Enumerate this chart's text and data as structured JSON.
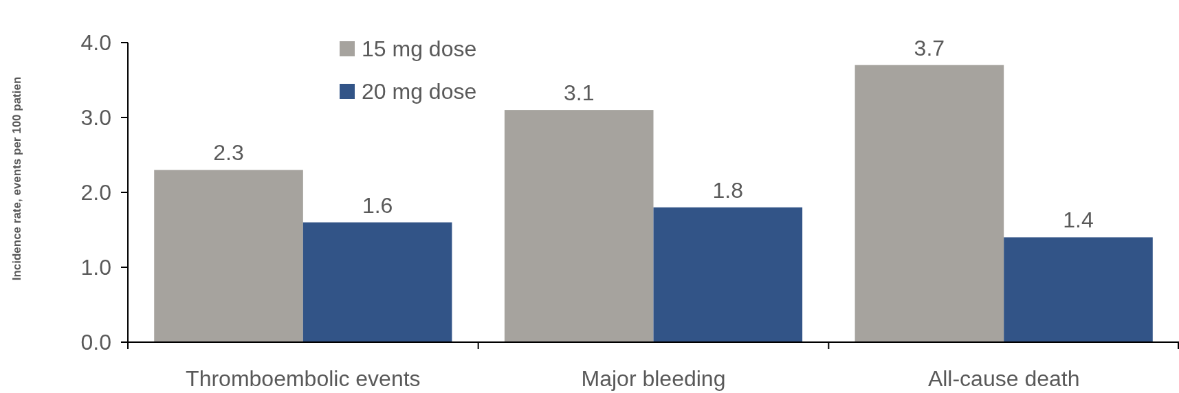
{
  "chart_data": {
    "type": "bar",
    "ylabel": "Incidence rate, events per 100 patien",
    "categories": [
      "Thromboembolic events",
      "Major bleeding",
      "All-cause death"
    ],
    "series": [
      {
        "name": "15 mg dose",
        "color": "#a6a39e",
        "values": [
          2.3,
          3.1,
          3.7
        ]
      },
      {
        "name": "20 mg dose",
        "color": "#325487",
        "values": [
          1.6,
          1.8,
          1.4
        ]
      }
    ],
    "ylim": [
      0,
      4
    ],
    "yticks": [
      {
        "value": 0,
        "label": "0.0"
      },
      {
        "value": 1,
        "label": "1.0"
      },
      {
        "value": 2,
        "label": "2.0"
      },
      {
        "value": 3,
        "label": "3.0"
      },
      {
        "value": 4,
        "label": "4.0"
      }
    ],
    "data_labels": true,
    "legend": "top left",
    "grid": false
  }
}
